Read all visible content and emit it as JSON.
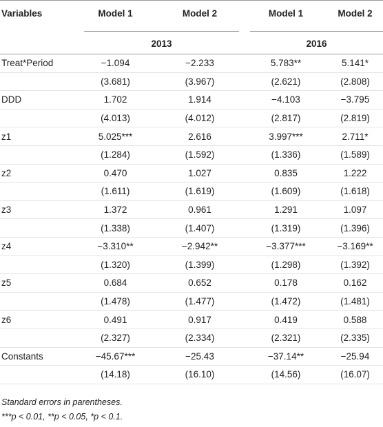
{
  "header": {
    "columns": [
      "Variables",
      "Model 1",
      "Model 2",
      "Model 1",
      "Model 2"
    ],
    "years": [
      "2013",
      "2016"
    ]
  },
  "rows": [
    {
      "variable": "Treat*Period",
      "coefficients": [
        "−1.094",
        "−2.233",
        "5.783**",
        "5.141*"
      ],
      "errors": [
        "(3.681)",
        "(3.967)",
        "(2.621)",
        "(2.808)"
      ]
    },
    {
      "variable": "DDD",
      "coefficients": [
        "1.702",
        "1.914",
        "−4.103",
        "−3.795"
      ],
      "errors": [
        "(4.013)",
        "(4.012)",
        "(2.817)",
        "(2.819)"
      ]
    },
    {
      "variable": "z1",
      "coefficients": [
        "5.025***",
        "2.616",
        "3.997***",
        "2.711*"
      ],
      "errors": [
        "(1.284)",
        "(1.592)",
        "(1.336)",
        "(1.589)"
      ]
    },
    {
      "variable": "z2",
      "coefficients": [
        "0.470",
        "1.027",
        "0.835",
        "1.222"
      ],
      "errors": [
        "(1.611)",
        "(1.619)",
        "(1.609)",
        "(1.618)"
      ]
    },
    {
      "variable": "z3",
      "coefficients": [
        "1.372",
        "0.961",
        "1.291",
        "1.097"
      ],
      "errors": [
        "(1.338)",
        "(1.407)",
        "(1.319)",
        "(1.396)"
      ]
    },
    {
      "variable": "z4",
      "coefficients": [
        "−3.310**",
        "−2.942**",
        "−3.377***",
        "−3.169**"
      ],
      "errors": [
        "(1.320)",
        "(1.399)",
        "(1.298)",
        "(1.392)"
      ]
    },
    {
      "variable": "z5",
      "coefficients": [
        "0.684",
        "0.652",
        "0.178",
        "0.162"
      ],
      "errors": [
        "(1.478)",
        "(1.477)",
        "(1.472)",
        "(1.481)"
      ]
    },
    {
      "variable": "z6",
      "coefficients": [
        "0.491",
        "0.917",
        "0.419",
        "0.588"
      ],
      "errors": [
        "(2.327)",
        "(2.334)",
        "(2.321)",
        "(2.335)"
      ]
    },
    {
      "variable": "Constants",
      "coefficients": [
        "−45.67***",
        "−25.43",
        "−37.14**",
        "−25.94"
      ],
      "errors": [
        "(14.18)",
        "(16.10)",
        "(14.56)",
        "(16.07)"
      ]
    }
  ],
  "notes": [
    "Standard errors in parentheses.",
    "***p < 0.01, **p < 0.05, *p < 0.1."
  ]
}
